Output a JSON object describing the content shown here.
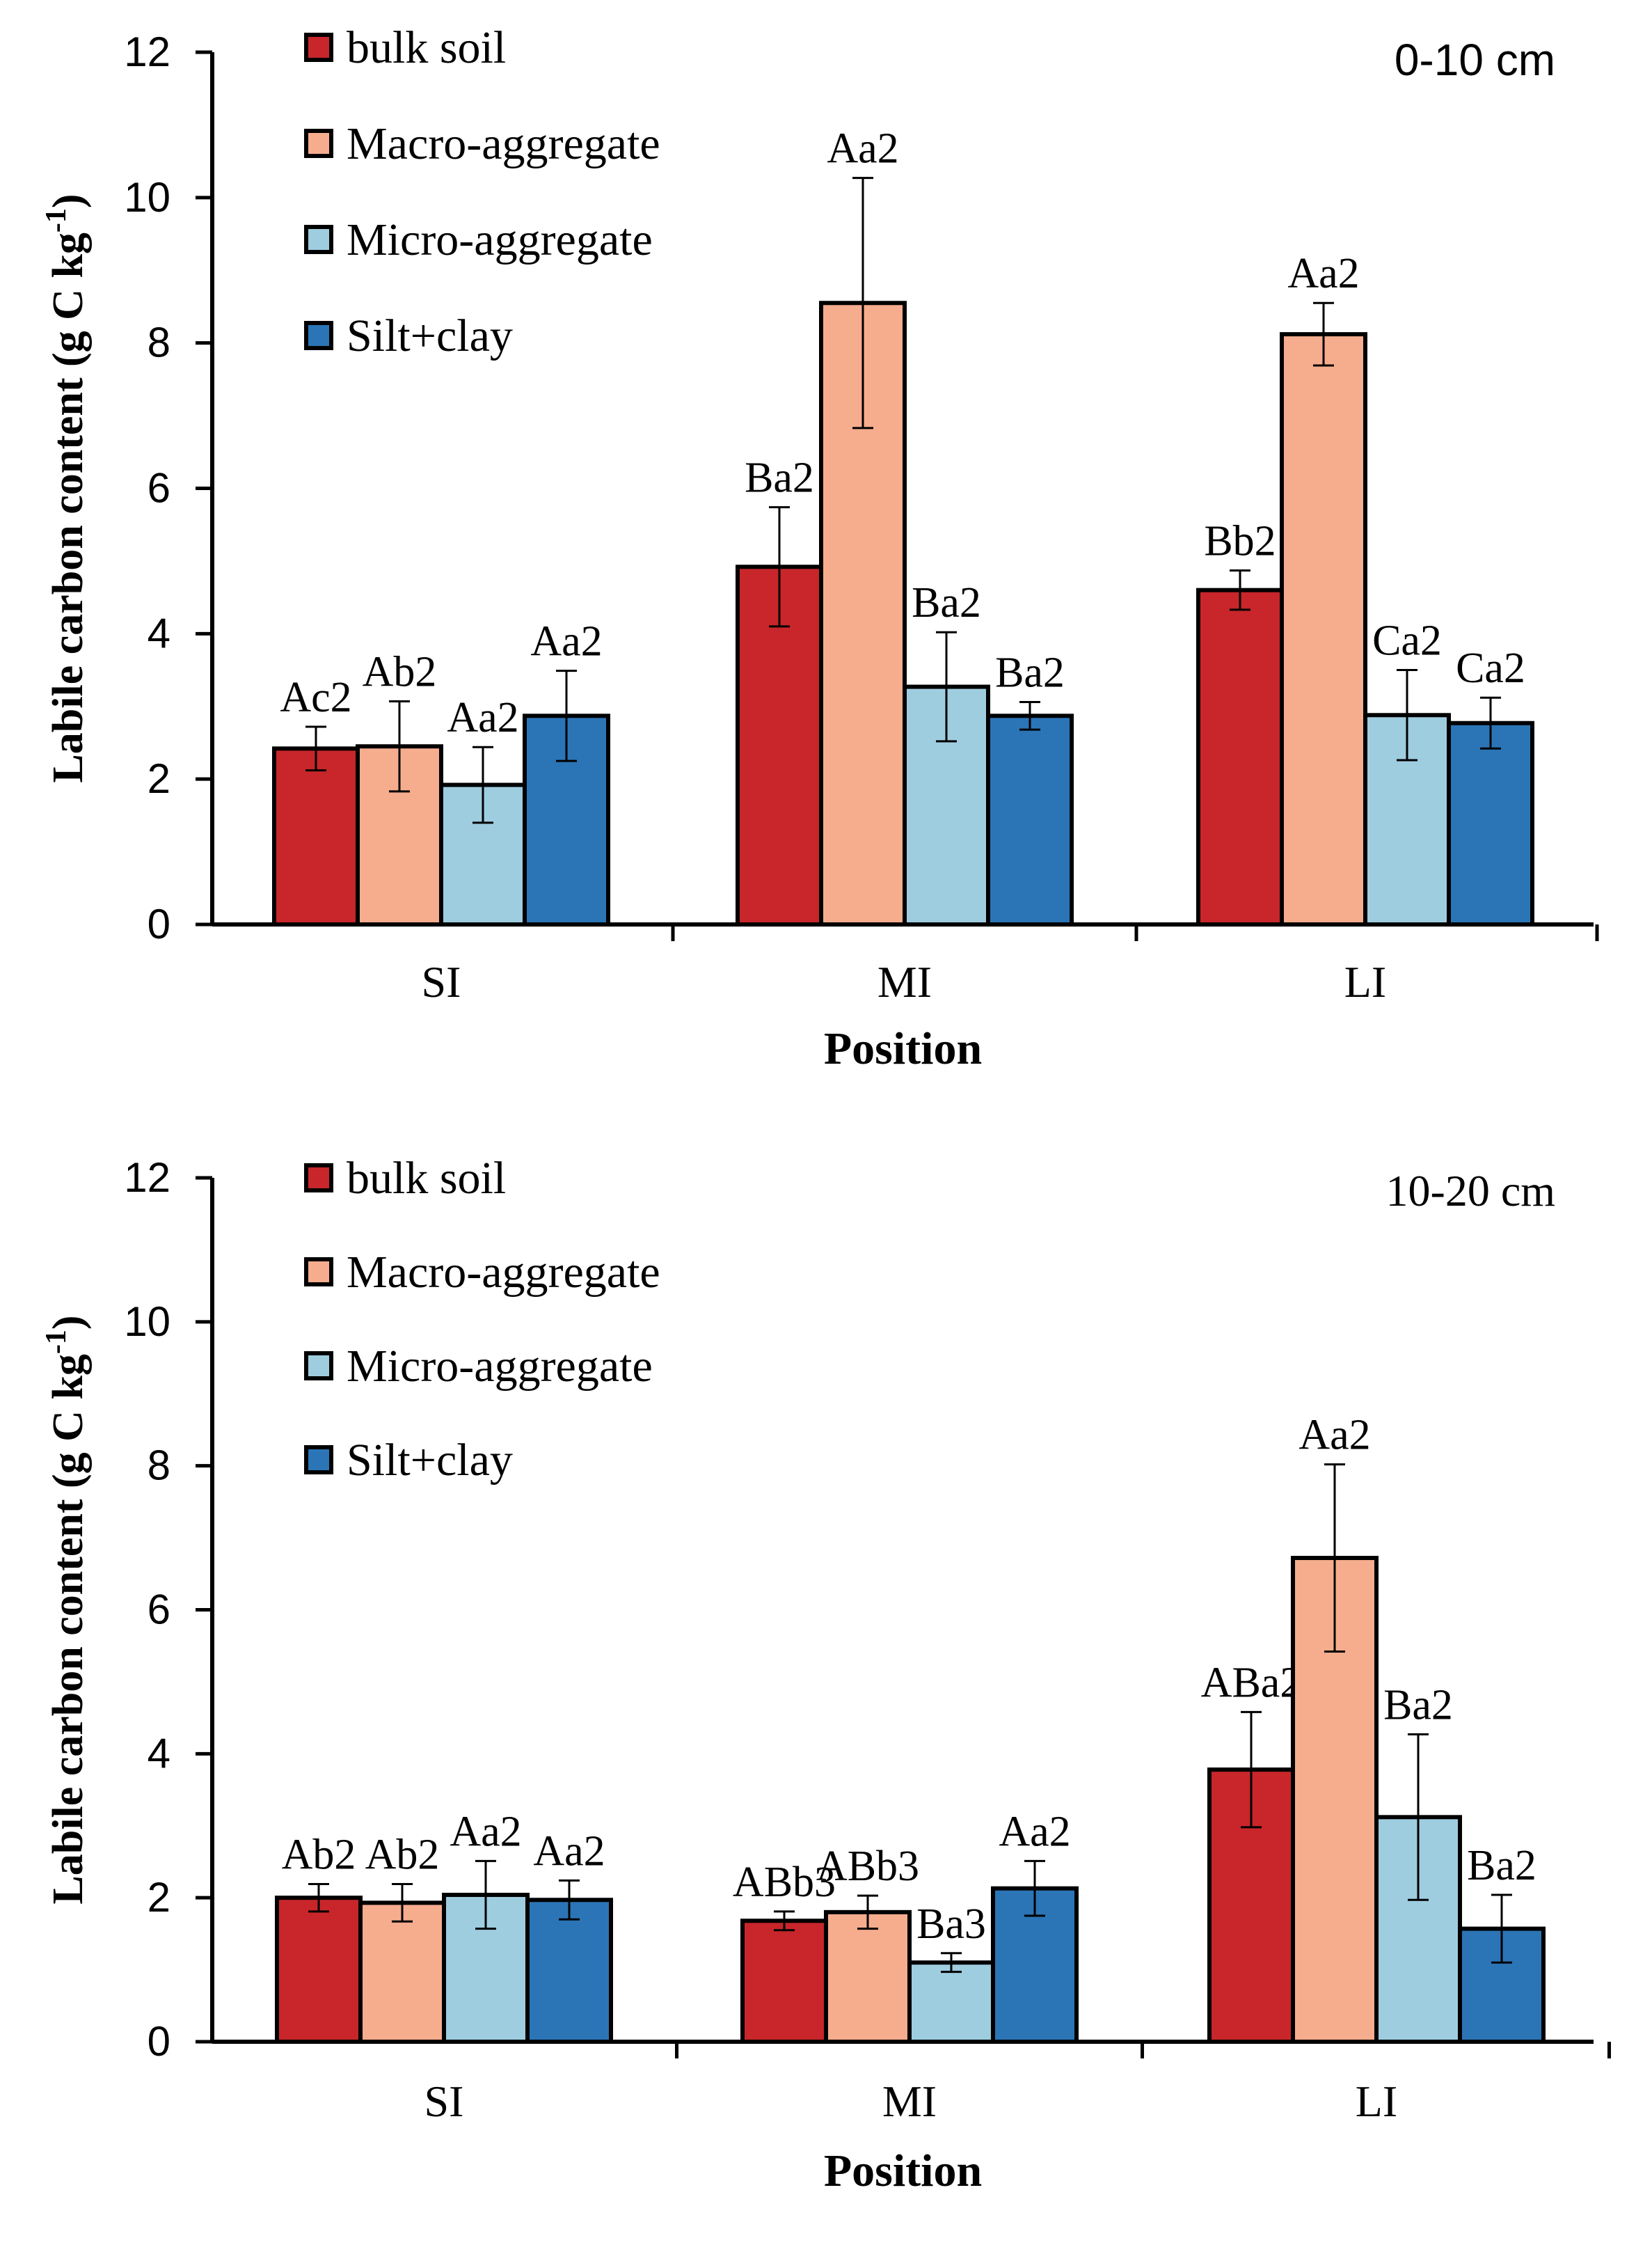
{
  "chart_data": [
    {
      "type": "bar",
      "title": "0-10 cm",
      "xlabel": "Position",
      "ylabel": "Labile carbon content (g C kg",
      "ylabel_sup": "-1",
      "ylabel_close": ")",
      "ylim": [
        0,
        12
      ],
      "yticks": [
        "0",
        "2",
        "4",
        "6",
        "8",
        "10",
        "12"
      ],
      "categories": [
        "SI",
        "MI",
        "LI"
      ],
      "legend_position": "top-left",
      "colors": [
        "#c8262a",
        "#f6ad8e",
        "#9fcde0",
        "#2b75b6"
      ],
      "series": [
        {
          "name": "bulk soil",
          "values": [
            2.42,
            4.92,
            4.6
          ],
          "errors": [
            0.3,
            0.82,
            0.27
          ],
          "labels": [
            "Ac2",
            "Ba2",
            "Bb2"
          ]
        },
        {
          "name": "Macro-aggregate",
          "values": [
            2.45,
            8.55,
            8.12
          ],
          "errors": [
            0.62,
            1.72,
            0.43
          ],
          "labels": [
            "Ab2",
            "Aa2",
            "Aa2"
          ]
        },
        {
          "name": "Micro-aggregate",
          "values": [
            1.92,
            3.27,
            2.88
          ],
          "errors": [
            0.52,
            0.75,
            0.62
          ],
          "labels": [
            "Aa2",
            "Ba2",
            "Ca2"
          ]
        },
        {
          "name": "Silt+clay",
          "values": [
            2.87,
            2.87,
            2.77
          ],
          "errors": [
            0.62,
            0.19,
            0.35
          ],
          "labels": [
            "Aa2",
            "Ba2",
            "Ca2"
          ]
        }
      ]
    },
    {
      "type": "bar",
      "title": "10-20 cm",
      "xlabel": "Position",
      "ylabel": "Labile carbon content (g C kg",
      "ylabel_sup": "-1",
      "ylabel_close": ")",
      "ylim": [
        0,
        12
      ],
      "yticks": [
        "0",
        "2",
        "4",
        "6",
        "8",
        "10",
        "12"
      ],
      "categories": [
        "SI",
        "MI",
        "LI"
      ],
      "legend_position": "top-left",
      "colors": [
        "#c8262a",
        "#f6ad8e",
        "#9fcde0",
        "#2b75b6"
      ],
      "series": [
        {
          "name": "bulk soil",
          "values": [
            2.0,
            1.68,
            3.78
          ],
          "errors": [
            0.19,
            0.13,
            0.8
          ],
          "labels": [
            "Ab2",
            "ABb3",
            "ABa2"
          ]
        },
        {
          "name": "Macro-aggregate",
          "values": [
            1.93,
            1.8,
            6.72
          ],
          "errors": [
            0.26,
            0.23,
            1.3
          ],
          "labels": [
            "Ab2",
            "ABb3",
            "Aa2"
          ]
        },
        {
          "name": "Micro-aggregate",
          "values": [
            2.04,
            1.1,
            3.12
          ],
          "errors": [
            0.47,
            0.13,
            1.15
          ],
          "labels": [
            "Aa2",
            "Ba3",
            "Ba2"
          ]
        },
        {
          "name": "Silt+clay",
          "values": [
            1.97,
            2.13,
            1.57
          ],
          "errors": [
            0.27,
            0.38,
            0.47
          ],
          "labels": [
            "Aa2",
            "Aa2",
            "Ba2"
          ]
        }
      ]
    }
  ]
}
